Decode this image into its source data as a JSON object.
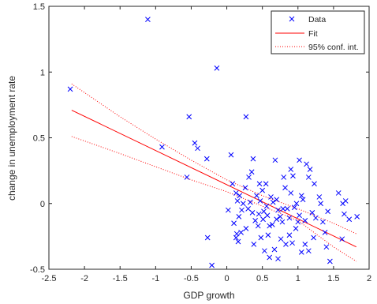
{
  "chart_data": {
    "type": "scatter",
    "xlabel": "GDP growth",
    "ylabel": "change in unemployment rate",
    "xlim": [
      -2.5,
      2
    ],
    "ylim": [
      -0.5,
      1.5
    ],
    "xticks": [
      -2.5,
      -2,
      -1.5,
      -1,
      -0.5,
      0,
      0.5,
      1,
      1.5,
      2
    ],
    "xtick_labels": [
      "-2.5",
      "-2",
      "-1.5",
      "-1",
      "-0.5",
      "0",
      "0.5",
      "1",
      "1.5",
      "2"
    ],
    "yticks": [
      -0.5,
      0,
      0.5,
      1,
      1.5
    ],
    "ytick_labels": [
      "-0.5",
      "0",
      "0.5",
      "1",
      "1.5"
    ],
    "grid": false,
    "legend_position": "top-right",
    "legend": [
      {
        "label": "Data",
        "style": "x-marker",
        "color": "#0000ff"
      },
      {
        "label": "Fit",
        "style": "solid-line",
        "color": "#ff0000"
      },
      {
        "label": "95% conf. int.",
        "style": "dotted-line",
        "color": "#ff0000"
      }
    ],
    "series": [
      {
        "name": "Data",
        "marker": "x",
        "color": "#0000ff",
        "points": [
          [
            -2.2,
            0.87
          ],
          [
            -1.11,
            1.4
          ],
          [
            -0.14,
            1.03
          ],
          [
            -0.91,
            0.43
          ],
          [
            -0.53,
            0.66
          ],
          [
            -0.45,
            0.46
          ],
          [
            -0.41,
            0.42
          ],
          [
            -0.56,
            0.2
          ],
          [
            -0.28,
            0.34
          ],
          [
            0.27,
            0.66
          ],
          [
            0.06,
            0.37
          ],
          [
            -0.27,
            -0.26
          ],
          [
            -0.21,
            -0.47
          ],
          [
            0.13,
            0.08
          ],
          [
            0.15,
            0.02
          ],
          [
            0.02,
            -0.05
          ],
          [
            0.17,
            -0.1
          ],
          [
            0.21,
            -0.05
          ],
          [
            0.1,
            -0.15
          ],
          [
            0.14,
            -0.23
          ],
          [
            0.16,
            -0.29
          ],
          [
            0.13,
            -0.26
          ],
          [
            0.2,
            -0.22
          ],
          [
            0.26,
            0.12
          ],
          [
            0.31,
            0.2
          ],
          [
            0.35,
            0.24
          ],
          [
            0.37,
            0.34
          ],
          [
            0.33,
            0.01
          ],
          [
            0.3,
            -0.04
          ],
          [
            0.36,
            -0.07
          ],
          [
            0.4,
            -0.13
          ],
          [
            0.44,
            -0.17
          ],
          [
            0.38,
            -0.31
          ],
          [
            0.27,
            -0.19
          ],
          [
            0.47,
            0.02
          ],
          [
            0.5,
            0.1
          ],
          [
            0.52,
            -0.06
          ],
          [
            0.55,
            0.15
          ],
          [
            0.57,
            -0.09
          ],
          [
            0.6,
            -0.17
          ],
          [
            0.62,
            0.05
          ],
          [
            0.65,
            0.01
          ],
          [
            0.58,
            -0.24
          ],
          [
            0.48,
            -0.26
          ],
          [
            0.53,
            -0.36
          ],
          [
            0.7,
            0.03
          ],
          [
            0.72,
            -0.05
          ],
          [
            0.75,
            -0.1
          ],
          [
            0.78,
            -0.14
          ],
          [
            0.8,
            0.2
          ],
          [
            0.68,
            0.33
          ],
          [
            0.82,
            0.12
          ],
          [
            0.85,
            -0.04
          ],
          [
            0.88,
            -0.11
          ],
          [
            0.9,
            0.26
          ],
          [
            0.93,
            0.21
          ],
          [
            0.95,
            -0.03
          ],
          [
            0.98,
            0.0
          ],
          [
            0.97,
            -0.19
          ],
          [
            1.0,
            -0.14
          ],
          [
            1.02,
            -0.09
          ],
          [
            1.05,
            0.06
          ],
          [
            1.07,
            0.03
          ],
          [
            1.1,
            -0.13
          ],
          [
            1.12,
            0.3
          ],
          [
            1.15,
            0.2
          ],
          [
            1.17,
            0.26
          ],
          [
            1.2,
            -0.07
          ],
          [
            1.22,
            -0.26
          ],
          [
            1.25,
            -0.11
          ],
          [
            1.1,
            -0.31
          ],
          [
            1.05,
            -0.37
          ],
          [
            0.92,
            -0.3
          ],
          [
            0.88,
            -0.24
          ],
          [
            0.67,
            -0.35
          ],
          [
            0.6,
            -0.41
          ],
          [
            0.72,
            -0.42
          ],
          [
            0.83,
            -0.31
          ],
          [
            1.15,
            -0.36
          ],
          [
            1.3,
            0.05
          ],
          [
            1.32,
            0.0
          ],
          [
            1.35,
            -0.14
          ],
          [
            1.38,
            -0.22
          ],
          [
            1.4,
            -0.33
          ],
          [
            1.45,
            -0.44
          ],
          [
            1.57,
            0.08
          ],
          [
            1.63,
            0.0
          ],
          [
            1.67,
            0.02
          ],
          [
            1.65,
            -0.08
          ],
          [
            1.62,
            -0.27
          ],
          [
            1.83,
            -0.1
          ],
          [
            1.72,
            -0.12
          ],
          [
            1.42,
            -0.06
          ],
          [
            0.42,
            0.06
          ],
          [
            0.46,
            0.15
          ],
          [
            0.23,
            0.0
          ],
          [
            0.18,
            0.06
          ],
          [
            0.08,
            0.15
          ],
          [
            0.64,
            -0.16
          ],
          [
            0.76,
            -0.27
          ],
          [
            0.9,
            0.08
          ],
          [
            0.79,
            -0.04
          ],
          [
            0.56,
            -0.02
          ],
          [
            1.23,
            0.15
          ],
          [
            1.02,
            0.33
          ],
          [
            0.51,
            -0.12
          ],
          [
            0.7,
            -0.12
          ],
          [
            0.45,
            -0.08
          ]
        ]
      },
      {
        "name": "Fit",
        "color": "#ff0000",
        "line": "solid",
        "x": [
          -2.18,
          1.82
        ],
        "y": [
          0.71,
          -0.33
        ]
      },
      {
        "name": "95% conf. int. (upper)",
        "color": "#ff0000",
        "line": "dotted",
        "x": [
          -2.18,
          -1.5,
          -1.0,
          -0.5,
          0.0,
          0.5,
          1.0,
          1.5,
          1.82
        ],
        "y": [
          0.91,
          0.66,
          0.49,
          0.33,
          0.18,
          0.06,
          -0.04,
          -0.15,
          -0.23
        ]
      },
      {
        "name": "95% conf. int. (lower)",
        "color": "#ff0000",
        "line": "dotted",
        "x": [
          -2.18,
          -1.5,
          -1.0,
          -0.5,
          0.0,
          0.5,
          1.0,
          1.5,
          1.82
        ],
        "y": [
          0.51,
          0.38,
          0.28,
          0.18,
          0.09,
          -0.02,
          -0.13,
          -0.33,
          -0.44
        ]
      }
    ]
  }
}
